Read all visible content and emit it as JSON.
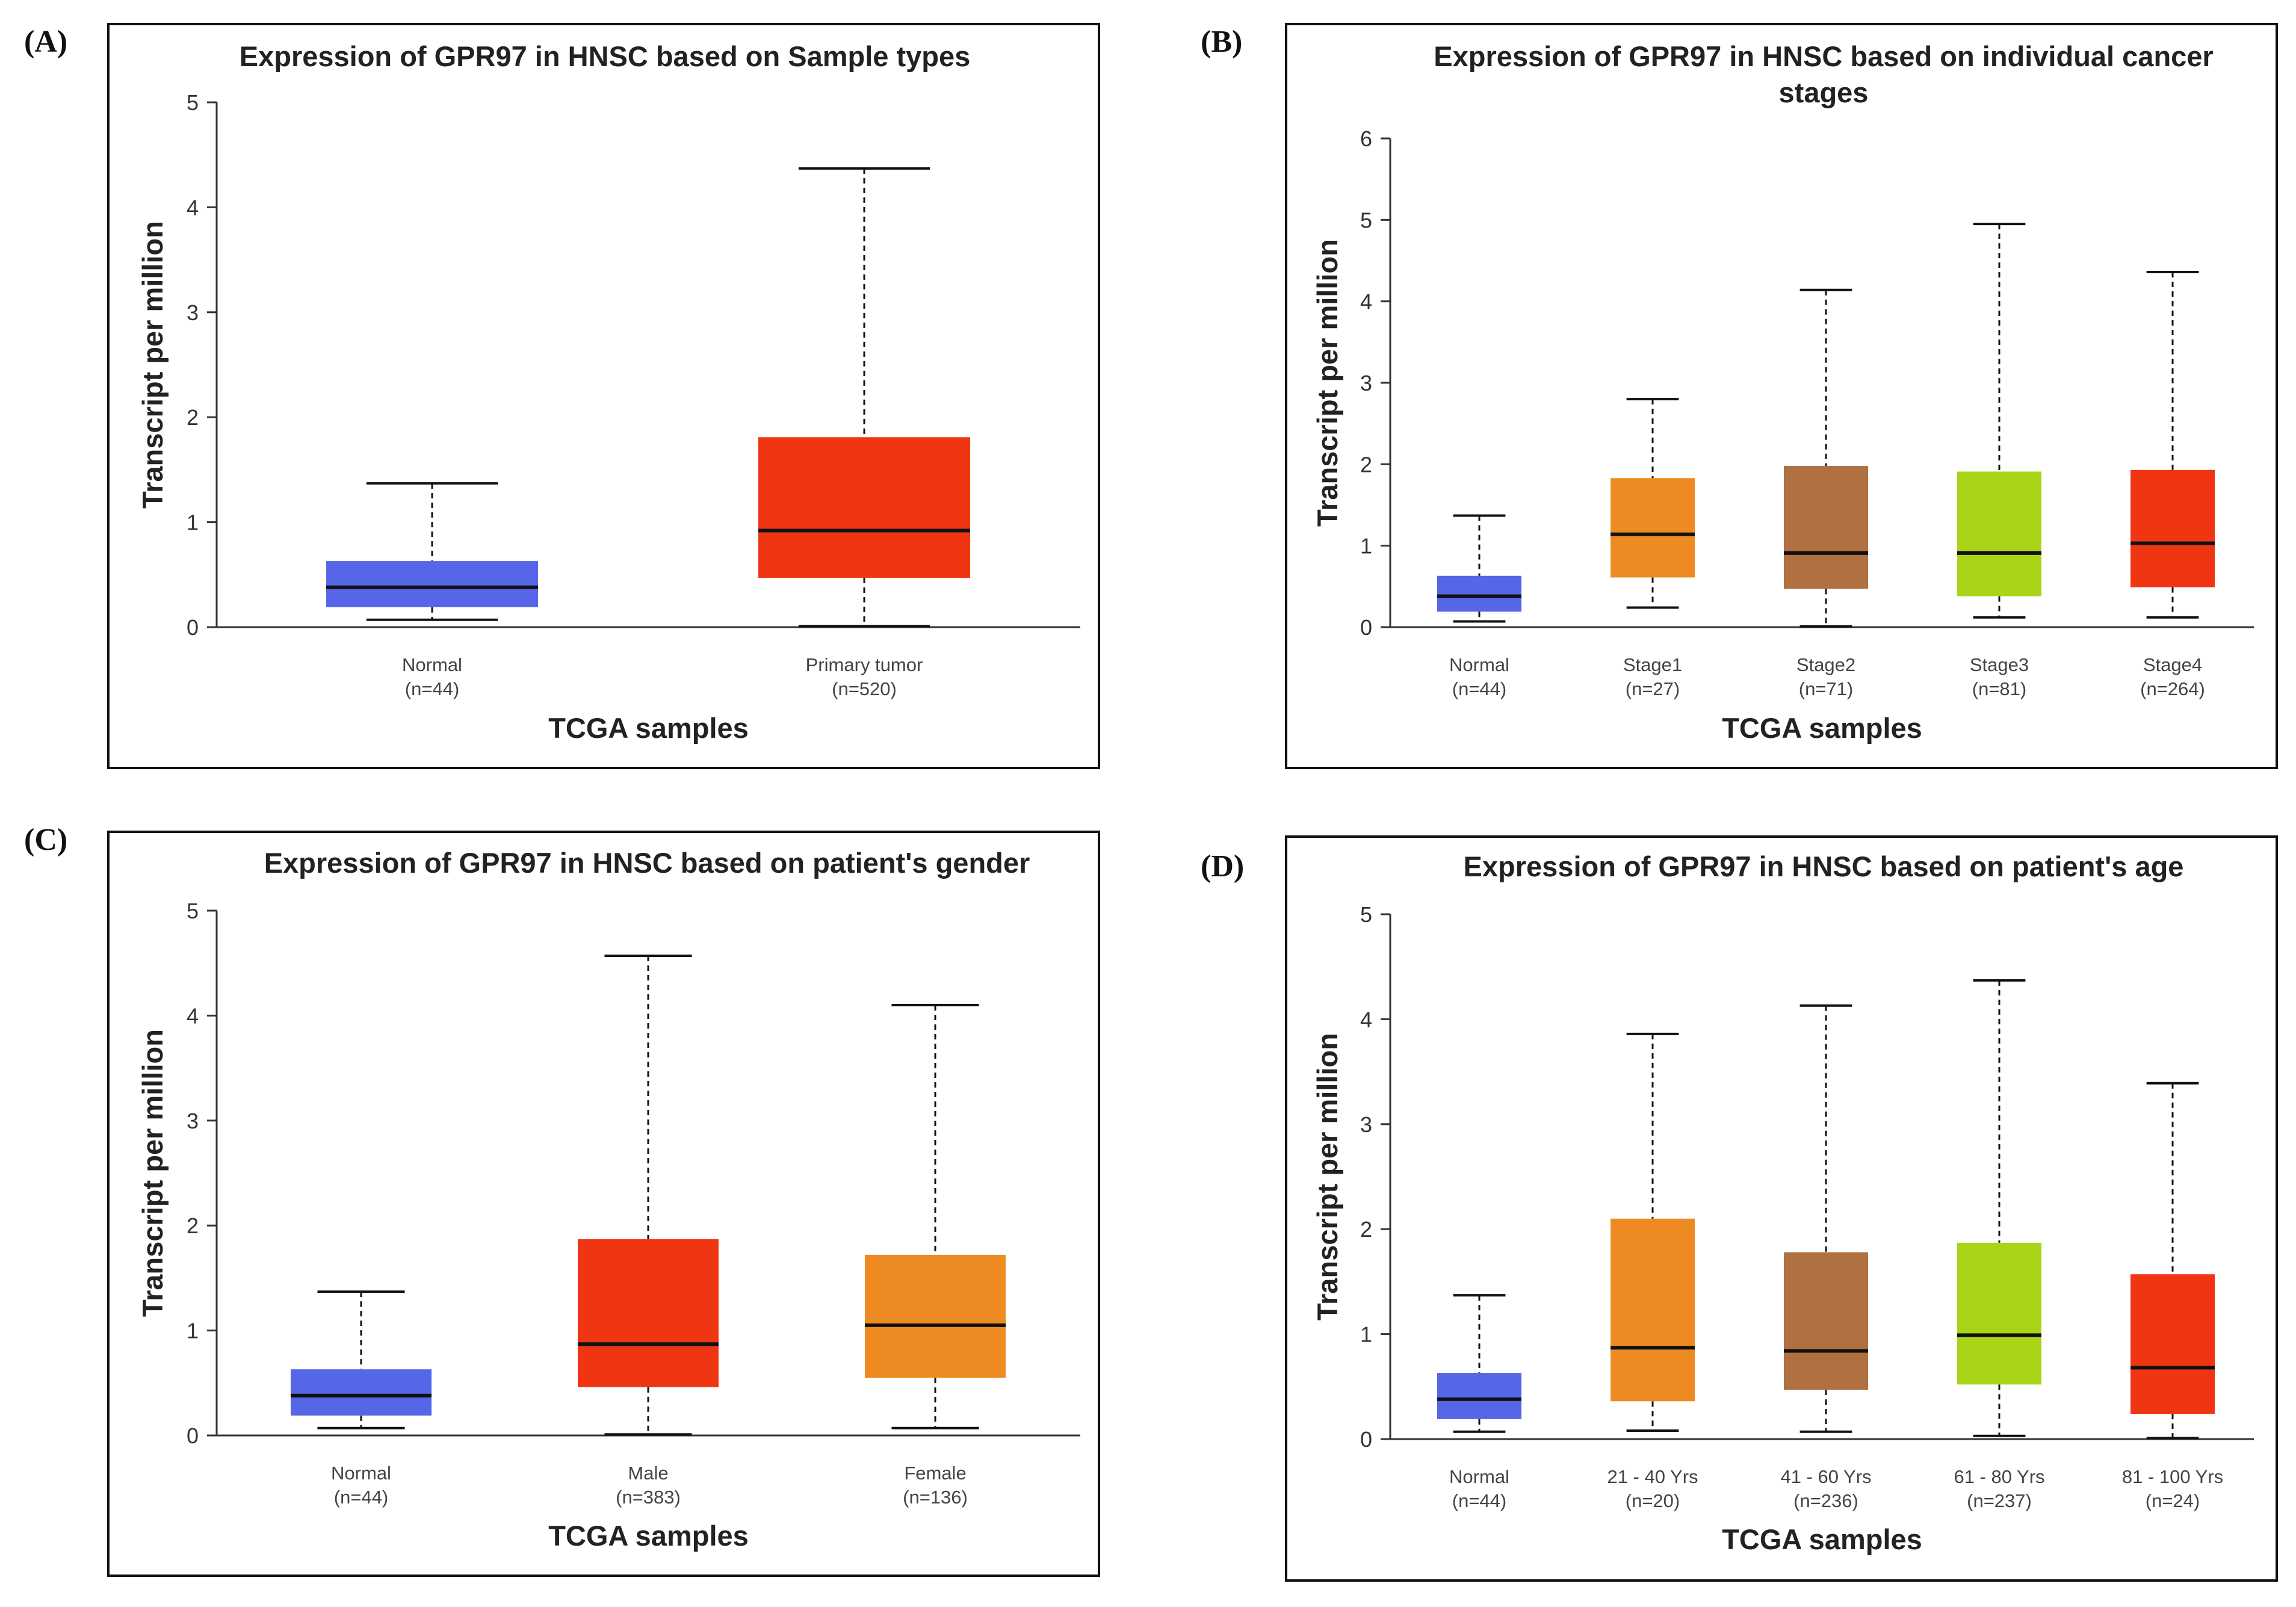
{
  "chart_data": [
    {
      "id": "A",
      "letter": "(A)",
      "type": "boxplot",
      "title_lines": [
        "Expression of GPR97 in HNSC based on Sample types"
      ],
      "ylabel": "Transcript per million",
      "xlabel": "TCGA samples",
      "ylim": [
        0,
        5
      ],
      "yticks": [
        0,
        1,
        2,
        3,
        4,
        5
      ],
      "groups": [
        {
          "name": "Normal",
          "n": "(n=44)",
          "color": "#5566e6",
          "min": 0.07,
          "q1": 0.19,
          "median": 0.38,
          "q3": 0.63,
          "max": 1.37
        },
        {
          "name": "Primary tumor",
          "n": "(n=520)",
          "color": "#f03512",
          "min": 0.01,
          "q1": 0.47,
          "median": 0.92,
          "q3": 1.81,
          "max": 4.37
        }
      ]
    },
    {
      "id": "B",
      "letter": "(B)",
      "type": "boxplot",
      "title_lines": [
        "Expression of GPR97 in HNSC based on individual cancer",
        "stages"
      ],
      "ylabel": "Transcript per million",
      "xlabel": "TCGA samples",
      "ylim": [
        0,
        6
      ],
      "yticks": [
        0,
        1,
        2,
        3,
        4,
        5,
        6
      ],
      "groups": [
        {
          "name": "Normal",
          "n": "(n=44)",
          "color": "#5566e6",
          "min": 0.07,
          "q1": 0.19,
          "median": 0.38,
          "q3": 0.63,
          "max": 1.37
        },
        {
          "name": "Stage1",
          "n": "(n=27)",
          "color": "#ee8a22",
          "min": 0.24,
          "q1": 0.61,
          "median": 1.14,
          "q3": 1.83,
          "max": 2.8
        },
        {
          "name": "Stage2",
          "n": "(n=71)",
          "color": "#b07040",
          "min": 0.01,
          "q1": 0.47,
          "median": 0.91,
          "q3": 1.98,
          "max": 4.14
        },
        {
          "name": "Stage3",
          "n": "(n=81)",
          "color": "#a9d418",
          "min": 0.12,
          "q1": 0.38,
          "median": 0.91,
          "q3": 1.91,
          "max": 4.95
        },
        {
          "name": "Stage4",
          "n": "(n=264)",
          "color": "#f03512",
          "min": 0.12,
          "q1": 0.49,
          "median": 1.03,
          "q3": 1.93,
          "max": 4.36
        }
      ]
    },
    {
      "id": "C",
      "letter": "(C)",
      "type": "boxplot",
      "title_lines": [
        "Expression of GPR97 in HNSC based on patient's gender"
      ],
      "ylabel": "Transcript per million",
      "xlabel": "TCGA samples",
      "ylim": [
        0,
        5
      ],
      "yticks": [
        0,
        1,
        2,
        3,
        4,
        5
      ],
      "groups": [
        {
          "name": "Normal",
          "n": "(n=44)",
          "color": "#5566e6",
          "min": 0.07,
          "q1": 0.19,
          "median": 0.38,
          "q3": 0.63,
          "max": 1.37
        },
        {
          "name": "Male",
          "n": "(n=383)",
          "color": "#f03512",
          "min": 0.01,
          "q1": 0.46,
          "median": 0.87,
          "q3": 1.87,
          "max": 4.57
        },
        {
          "name": "Female",
          "n": "(n=136)",
          "color": "#ee8a22",
          "min": 0.07,
          "q1": 0.55,
          "median": 1.05,
          "q3": 1.72,
          "max": 4.1
        }
      ]
    },
    {
      "id": "D",
      "letter": "(D)",
      "type": "boxplot",
      "title_lines": [
        "Expression of GPR97 in HNSC based on patient's age"
      ],
      "ylabel": "Transcript per million",
      "xlabel": "TCGA samples",
      "ylim": [
        0,
        5
      ],
      "yticks": [
        0,
        1,
        2,
        3,
        4,
        5
      ],
      "groups": [
        {
          "name": "Normal",
          "n": "(n=44)",
          "color": "#5566e6",
          "min": 0.07,
          "q1": 0.19,
          "median": 0.38,
          "q3": 0.63,
          "max": 1.37
        },
        {
          "name": "21 - 40 Yrs",
          "n": "(n=20)",
          "color": "#ee8a22",
          "min": 0.08,
          "q1": 0.36,
          "median": 0.87,
          "q3": 2.1,
          "max": 3.86
        },
        {
          "name": "41 - 60 Yrs",
          "n": "(n=236)",
          "color": "#b07040",
          "min": 0.07,
          "q1": 0.47,
          "median": 0.84,
          "q3": 1.78,
          "max": 4.13
        },
        {
          "name": "61 - 80 Yrs",
          "n": "(n=237)",
          "color": "#a9d418",
          "min": 0.03,
          "q1": 0.52,
          "median": 0.99,
          "q3": 1.87,
          "max": 4.37
        },
        {
          "name": "81 - 100 Yrs",
          "n": "(n=24)",
          "color": "#f03512",
          "min": 0.01,
          "q1": 0.24,
          "median": 0.68,
          "q3": 1.57,
          "max": 3.39
        }
      ]
    }
  ]
}
